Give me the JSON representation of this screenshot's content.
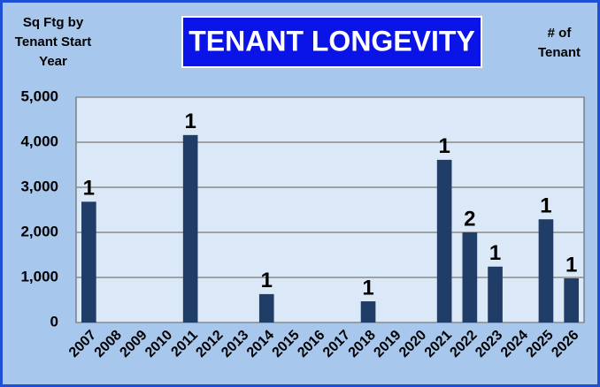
{
  "chart_data": {
    "type": "bar",
    "title": "TENANT LONGEVITY",
    "y_axis_label": [
      "Sq Ftg by",
      "Tenant Start",
      "Year"
    ],
    "data_label_title": [
      "# of",
      "Tenant"
    ],
    "categories": [
      "2007",
      "2008",
      "2009",
      "2010",
      "2011",
      "2012",
      "2013",
      "2014",
      "2015",
      "2016",
      "2017",
      "2018",
      "2019",
      "2020",
      "2021",
      "2022",
      "2023",
      "2024",
      "2025",
      "2026"
    ],
    "values": [
      2680,
      null,
      null,
      null,
      4160,
      null,
      null,
      630,
      null,
      null,
      null,
      470,
      null,
      null,
      3610,
      2000,
      1240,
      null,
      2290,
      980
    ],
    "data_labels": [
      1,
      null,
      null,
      null,
      1,
      null,
      null,
      1,
      null,
      null,
      null,
      1,
      null,
      null,
      1,
      2,
      1,
      null,
      1,
      1
    ],
    "color": "#1f3d66",
    "ylim": [
      0,
      5000
    ],
    "yticks": [
      0,
      {
        "value": 1000,
        "label": "1,000"
      },
      {
        "value": 2000,
        "label": "2,000"
      },
      {
        "value": 3000,
        "label": "3,000"
      },
      {
        "value": 4000,
        "label": "4,000"
      },
      {
        "value": 5000,
        "label": "5,000"
      }
    ],
    "grid": true
  }
}
